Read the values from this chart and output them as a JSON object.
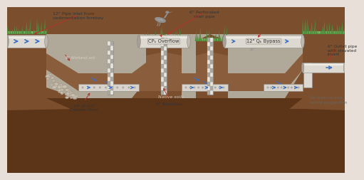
{
  "soil_brown": "#7b4f2e",
  "soil_dark": "#5c3418",
  "gravel_gray": "#b0a898",
  "grass_green": "#7db86a",
  "grass_dark": "#4f8a3a",
  "wetland_brown": "#8a5e3c",
  "pipe_light": "#ddd8d0",
  "pipe_mid": "#c0b8b0",
  "pipe_dark": "#a09890",
  "arrow_blue": "#3a6fc4",
  "arrow_red": "#b83228",
  "text_dark": "#333333",
  "text_light": "#d8cfc4",
  "bg": "#e8e0d8",
  "labels": {
    "inlet": "12\" Pipe inlet from\nsedimentation forebay",
    "riser": "6\" Perforated\nriser pipe",
    "overflow": "CPₖ Overflow",
    "bypass": "12\" Qₖ Bypass",
    "outlet": "6\" Outlet pipe\nwith elevated\ninvert",
    "wetland": "8\" Wetland soil",
    "native": "Native soils",
    "crushed": "24\" of 3/4\"\nCrushed stone",
    "subdrain": "6\" Subdrain",
    "note": "Not drawn to scale,\nvertical exaggeration"
  }
}
